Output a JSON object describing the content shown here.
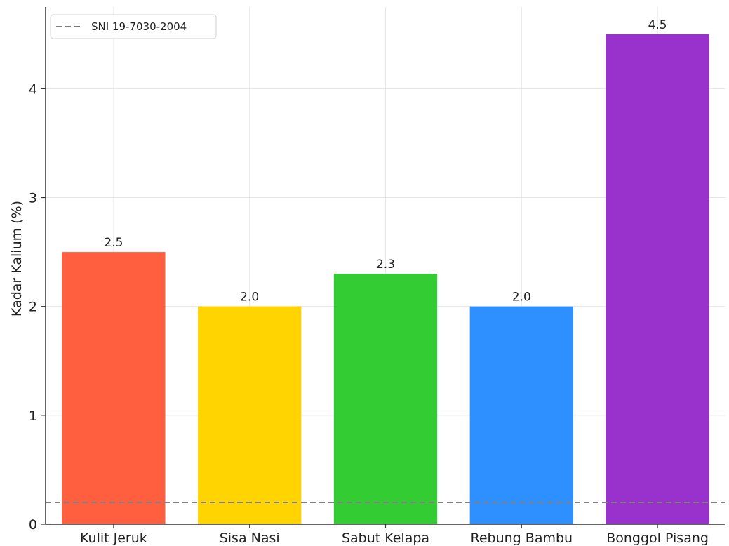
{
  "chart_data": {
    "type": "bar",
    "title": "",
    "xlabel": "",
    "ylabel": "Kadar Kalium (%)",
    "categories": [
      "Kulit Jeruk",
      "Sisa Nasi",
      "Sabut Kelapa",
      "Rebung Bambu",
      "Bonggol Pisang"
    ],
    "values": [
      2.5,
      2.0,
      2.3,
      2.0,
      4.5
    ],
    "value_labels": [
      "2.5",
      "2.0",
      "2.3",
      "2.0",
      "4.5"
    ],
    "colors": [
      "#ff5f3f",
      "#ffd400",
      "#33cc33",
      "#2e8fff",
      "#9932cc"
    ],
    "ylim": [
      0,
      4.75
    ],
    "yticks": [
      0,
      1,
      2,
      3,
      4
    ],
    "grid": true,
    "reference_line": {
      "label": "SNI 19-7030-2004",
      "value": 0.2,
      "style": "dashed",
      "color": "#808080"
    },
    "legend": {
      "position": "top-left",
      "entries": [
        "SNI 19-7030-2004"
      ]
    }
  }
}
